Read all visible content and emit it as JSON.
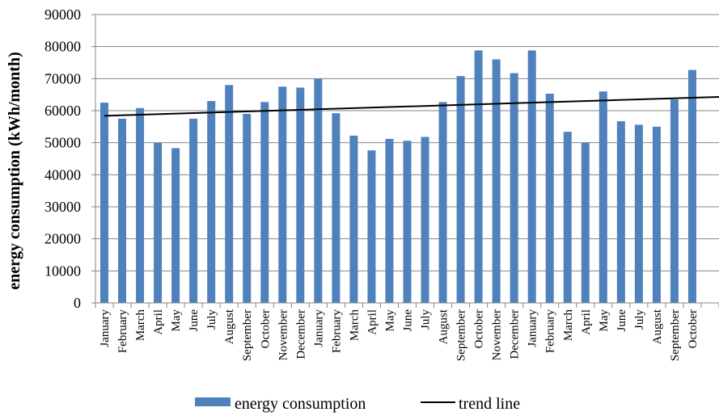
{
  "chart_data": {
    "type": "bar",
    "ylabel": "energy consumption (kWh/month)",
    "xlabel": "",
    "title": "",
    "ylim": [
      0,
      90000
    ],
    "yticks": [
      0,
      10000,
      20000,
      30000,
      40000,
      50000,
      60000,
      70000,
      80000,
      90000
    ],
    "categories": [
      "January",
      "February",
      "March",
      "April",
      "May",
      "June",
      "July",
      "August",
      "September",
      "October",
      "November",
      "December",
      "January",
      "February",
      "March",
      "April",
      "May",
      "June",
      "July",
      "August",
      "September",
      "October",
      "November",
      "December",
      "January",
      "February",
      "March",
      "April",
      "May",
      "June",
      "July",
      "August",
      "September",
      "October"
    ],
    "series": [
      {
        "name": "energy consumption",
        "kind": "bar",
        "color": "#4F81BD",
        "values": [
          62500,
          57500,
          60800,
          50000,
          48300,
          57500,
          63000,
          68000,
          59000,
          62700,
          67500,
          67200,
          70000,
          59200,
          52200,
          47600,
          51200,
          50600,
          51800,
          62700,
          70800,
          78800,
          76000,
          71700,
          78800,
          65300,
          53400,
          50000,
          66000,
          56700,
          55600,
          55000,
          63500,
          72700
        ]
      },
      {
        "name": "trend line",
        "kind": "line",
        "color": "#000000",
        "start": 58400,
        "end": 64200
      }
    ],
    "grid": true,
    "legend": "bottom"
  }
}
